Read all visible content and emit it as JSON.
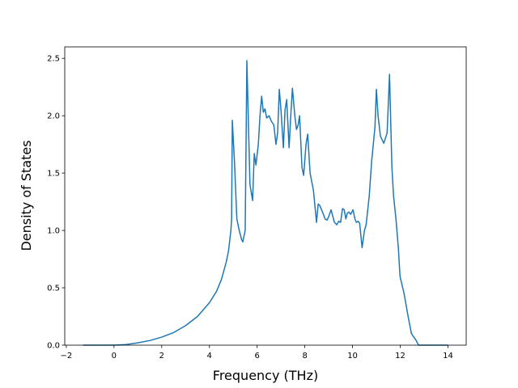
{
  "chart_data": {
    "type": "line",
    "xlabel": "Frequency (THz)",
    "ylabel": "Density of States",
    "color": "#1f77b4",
    "x": [
      -1.3,
      0,
      0.5,
      1,
      1.5,
      2,
      2.5,
      3,
      3.5,
      4,
      4.3,
      4.5,
      4.7,
      4.8,
      4.9,
      4.93,
      4.96,
      5.05,
      5.15,
      5.25,
      5.35,
      5.4,
      5.5,
      5.57,
      5.7,
      5.81,
      5.88,
      5.95,
      6.05,
      6.12,
      6.19,
      6.26,
      6.33,
      6.4,
      6.5,
      6.6,
      6.7,
      6.79,
      6.86,
      6.93,
      7.0,
      7.1,
      7.17,
      7.24,
      7.34,
      7.41,
      7.48,
      7.58,
      7.65,
      7.72,
      7.78,
      7.88,
      7.95,
      8.05,
      8.12,
      8.22,
      8.36,
      8.49,
      8.56,
      8.62,
      8.76,
      8.85,
      8.93,
      9.0,
      9.1,
      9.24,
      9.34,
      9.42,
      9.5,
      9.58,
      9.65,
      9.72,
      9.78,
      9.85,
      9.92,
      10.02,
      10.1,
      10.16,
      10.24,
      10.3,
      10.4,
      10.5,
      10.57,
      10.7,
      10.8,
      10.94,
      11.0,
      11.07,
      11.17,
      11.31,
      11.45,
      11.55,
      11.65,
      11.72,
      11.82,
      11.92,
      11.99,
      12.16,
      12.33,
      12.47,
      12.64,
      12.77,
      14
    ],
    "values": [
      0,
      0,
      0.005,
      0.02,
      0.04,
      0.07,
      0.11,
      0.17,
      0.25,
      0.37,
      0.47,
      0.57,
      0.72,
      0.82,
      1.0,
      1.1,
      1.96,
      1.6,
      1.1,
      1.0,
      0.92,
      0.9,
      1.0,
      2.48,
      1.4,
      1.26,
      1.67,
      1.57,
      1.75,
      2.0,
      2.17,
      2.03,
      2.06,
      1.98,
      2.0,
      1.95,
      1.92,
      1.75,
      1.85,
      2.23,
      2.05,
      1.72,
      2.05,
      2.14,
      1.72,
      2.0,
      2.24,
      2.0,
      1.88,
      1.92,
      2.0,
      1.55,
      1.48,
      1.75,
      1.84,
      1.5,
      1.35,
      1.07,
      1.23,
      1.22,
      1.15,
      1.1,
      1.09,
      1.12,
      1.18,
      1.07,
      1.05,
      1.08,
      1.07,
      1.19,
      1.18,
      1.1,
      1.15,
      1.16,
      1.14,
      1.18,
      1.1,
      1.07,
      1.08,
      1.06,
      0.85,
      1.0,
      1.05,
      1.3,
      1.6,
      1.9,
      2.23,
      2.0,
      1.82,
      1.76,
      1.85,
      2.36,
      1.55,
      1.3,
      1.1,
      0.85,
      0.6,
      0.45,
      0.25,
      0.1,
      0.05,
      0,
      0
    ],
    "xlim": [
      -2.065,
      14.765
    ],
    "ylim": [
      0,
      2.6
    ],
    "xticks": [
      {
        "value": -2,
        "label": "−2"
      },
      0,
      2,
      4,
      6,
      8,
      10,
      12,
      14
    ],
    "yticks": [
      {
        "value": 0,
        "label": "0.0"
      },
      0.5,
      {
        "value": 1,
        "label": "1.0"
      },
      1.5,
      {
        "value": 2,
        "label": "2.0"
      },
      2.5
    ]
  }
}
